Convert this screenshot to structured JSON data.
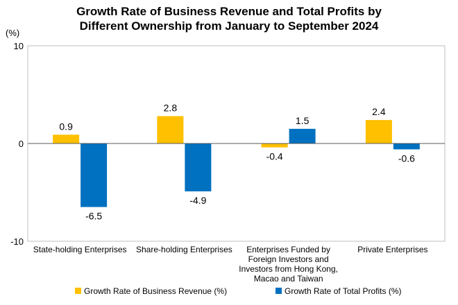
{
  "chart_data": {
    "type": "bar",
    "title": [
      "Growth Rate of Business Revenue and Total Profits by",
      "Different Ownership from January to September 2024"
    ],
    "unit_label": "(%)",
    "ylim": [
      -10,
      10
    ],
    "y_ticks": [
      "10",
      "0",
      "-10"
    ],
    "y_tick_values": [
      10,
      0,
      -10
    ],
    "grid": false,
    "legend_position": "bottom",
    "categories": [
      [
        "State-holding Enterprises"
      ],
      [
        "Share-holding Enterprises"
      ],
      [
        "Enterprises Funded by",
        "Foreign Investors and",
        "Investors from Hong Kong,",
        "Macao and Taiwan"
      ],
      [
        "Private Enterprises"
      ]
    ],
    "series": [
      {
        "name": "Growth Rate of Business Revenue (%)",
        "color": "#FFC000",
        "values": [
          0.9,
          2.8,
          -0.4,
          2.4
        ],
        "labels": [
          "0.9",
          "2.8",
          "-0.4",
          "2.4"
        ]
      },
      {
        "name": "Growth Rate of Total Profits (%)",
        "color": "#0070C0",
        "values": [
          -6.5,
          -4.9,
          1.5,
          -0.6
        ],
        "labels": [
          "-6.5",
          "-4.9",
          "1.5",
          "-0.6"
        ]
      }
    ]
  }
}
